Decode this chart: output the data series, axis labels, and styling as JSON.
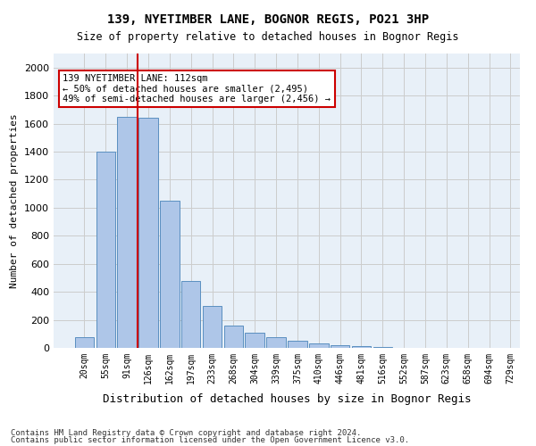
{
  "title": "139, NYETIMBER LANE, BOGNOR REGIS, PO21 3HP",
  "subtitle": "Size of property relative to detached houses in Bognor Regis",
  "xlabel": "Distribution of detached houses by size in Bognor Regis",
  "ylabel": "Number of detached properties",
  "footnote1": "Contains HM Land Registry data © Crown copyright and database right 2024.",
  "footnote2": "Contains public sector information licensed under the Open Government Licence v3.0.",
  "bin_labels": [
    "20sqm",
    "55sqm",
    "91sqm",
    "126sqm",
    "162sqm",
    "197sqm",
    "233sqm",
    "268sqm",
    "304sqm",
    "339sqm",
    "375sqm",
    "410sqm",
    "446sqm",
    "481sqm",
    "516sqm",
    "552sqm",
    "587sqm",
    "623sqm",
    "658sqm",
    "694sqm",
    "729sqm"
  ],
  "bar_values": [
    75,
    1400,
    1650,
    1640,
    1050,
    480,
    300,
    160,
    110,
    75,
    50,
    30,
    20,
    10,
    8,
    0,
    0,
    0,
    0,
    0
  ],
  "bar_color": "#aec6e8",
  "bar_edge_color": "#5a8fc0",
  "ylim": [
    0,
    2100
  ],
  "yticks": [
    0,
    200,
    400,
    600,
    800,
    1000,
    1200,
    1400,
    1600,
    1800,
    2000
  ],
  "property_line_x": 2,
  "property_line_label": "139 NYETIMBER LANE: 112sqm",
  "annotation_line1": "← 50% of detached houses are smaller (2,495)",
  "annotation_line2": "49% of semi-detached houses are larger (2,456) →",
  "annotation_box_color": "#ffffff",
  "annotation_border_color": "#cc0000",
  "vline_color": "#cc0000",
  "grid_color": "#cccccc",
  "background_color": "#e8f0f8",
  "fig_background": "#ffffff"
}
